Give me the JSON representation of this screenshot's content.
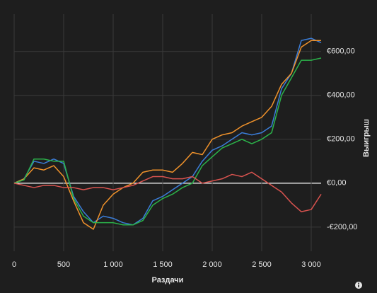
{
  "chart_data": {
    "type": "line",
    "x_label": "Раздачи",
    "y_label": "Выигрыш",
    "x": [
      0,
      100,
      200,
      300,
      400,
      500,
      600,
      700,
      800,
      900,
      1000,
      1100,
      1200,
      1300,
      1400,
      1500,
      1600,
      1700,
      1800,
      1900,
      2000,
      2100,
      2200,
      2300,
      2400,
      2500,
      2600,
      2700,
      2800,
      2900,
      3000,
      3100
    ],
    "series": [
      {
        "color": "#3b7dd8",
        "values": [
          0,
          20,
          100,
          90,
          110,
          90,
          -60,
          -130,
          -180,
          -150,
          -160,
          -180,
          -190,
          -160,
          -80,
          -60,
          -30,
          0,
          30,
          100,
          150,
          170,
          200,
          230,
          220,
          230,
          260,
          430,
          500,
          650,
          660,
          640
        ]
      },
      {
        "color": "#f0922b",
        "values": [
          0,
          20,
          70,
          60,
          80,
          30,
          -80,
          -180,
          -210,
          -100,
          -50,
          -20,
          0,
          50,
          60,
          60,
          50,
          90,
          140,
          130,
          200,
          220,
          230,
          260,
          280,
          300,
          350,
          450,
          500,
          620,
          650,
          650
        ]
      },
      {
        "color": "#2bb34a",
        "values": [
          0,
          15,
          110,
          110,
          100,
          100,
          -70,
          -150,
          -180,
          -180,
          -180,
          -190,
          -190,
          -170,
          -100,
          -70,
          -50,
          -20,
          0,
          80,
          120,
          160,
          180,
          200,
          180,
          200,
          230,
          400,
          480,
          560,
          560,
          570
        ]
      },
      {
        "color": "#d9534f",
        "values": [
          0,
          -10,
          -20,
          -10,
          -10,
          -20,
          -20,
          -30,
          -20,
          -20,
          -30,
          -20,
          -10,
          10,
          30,
          30,
          20,
          20,
          30,
          0,
          10,
          20,
          40,
          30,
          50,
          20,
          -10,
          -40,
          -90,
          -130,
          -120,
          -50
        ]
      }
    ],
    "xlim": [
      0,
      3100
    ],
    "ylim": [
      -310,
      770
    ],
    "xticks": [
      0,
      500,
      {
        "value": 1000,
        "label": "1 000"
      },
      {
        "value": 1500,
        "label": "1 500"
      },
      {
        "value": 2000,
        "label": "2 000"
      },
      {
        "value": 2500,
        "label": "2 500"
      },
      {
        "value": 3000,
        "label": "3 000"
      }
    ],
    "yticks": [
      {
        "value": -200,
        "label": "-€200,00"
      },
      {
        "value": 0,
        "label": "€0,00"
      },
      {
        "value": 200,
        "label": "€200,00"
      },
      {
        "value": 400,
        "label": "€400,00"
      },
      {
        "value": 600,
        "label": "€600,00"
      }
    ],
    "grid": true
  }
}
